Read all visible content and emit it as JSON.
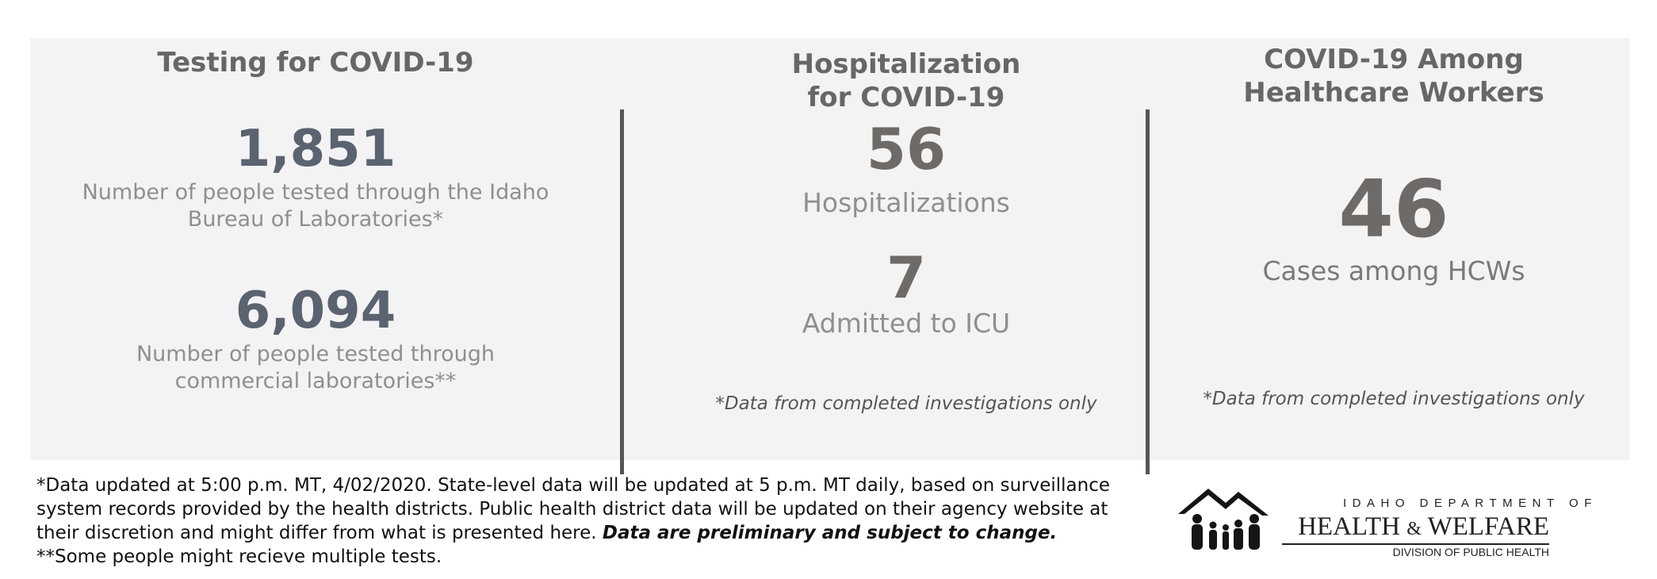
{
  "testing": {
    "title": "Testing for COVID-19",
    "stat1_value": "1,851",
    "stat1_line1": "Number of people tested through the Idaho",
    "stat1_line2": "Bureau of Laboratories*",
    "stat2_value": "6,094",
    "stat2_line1": "Number of people tested through",
    "stat2_line2": "commercial laboratories**"
  },
  "hospitalization": {
    "title_line1": "Hospitalization",
    "title_line2": "for COVID-19",
    "hosp_value": "56",
    "hosp_label": "Hospitalizations",
    "icu_value": "7",
    "icu_label": "Admitted to ICU",
    "note": "*Data from completed investigations only"
  },
  "healthcare_workers": {
    "title_line1": "COVID-19 Among",
    "title_line2": "Healthcare Workers",
    "cases_value": "46",
    "cases_label": "Cases among HCWs",
    "note": "*Data from completed investigations only"
  },
  "footer": {
    "line1": "*Data updated at 5:00 p.m. MT, 4/02/2020. State-level data will be updated at 5 p.m. MT daily, based on surveillance",
    "line2": "system records provided by the health districts. Public health district data will be updated on their agency website at",
    "line3_plain": "their discretion and might differ from what is presented here. ",
    "line3_emphasis": "Data are preliminary and subject to change.",
    "line4": "**Some people might recieve multiple tests."
  },
  "logo": {
    "top_text": "IDAHO DEPARTMENT OF",
    "main_left": "HEALTH",
    "main_amp": "&",
    "main_right": "WELFARE",
    "sub_text": "DIVISION OF PUBLIC HEALTH",
    "icon": "family-house-icon"
  },
  "colors": {
    "panel_background": "#f3f3f3",
    "heading": "#676767",
    "stat_blue_gray": "#5a6370",
    "stat_gray": "#6e6a68",
    "description": "#8f8f8f",
    "divider": "#555555"
  }
}
